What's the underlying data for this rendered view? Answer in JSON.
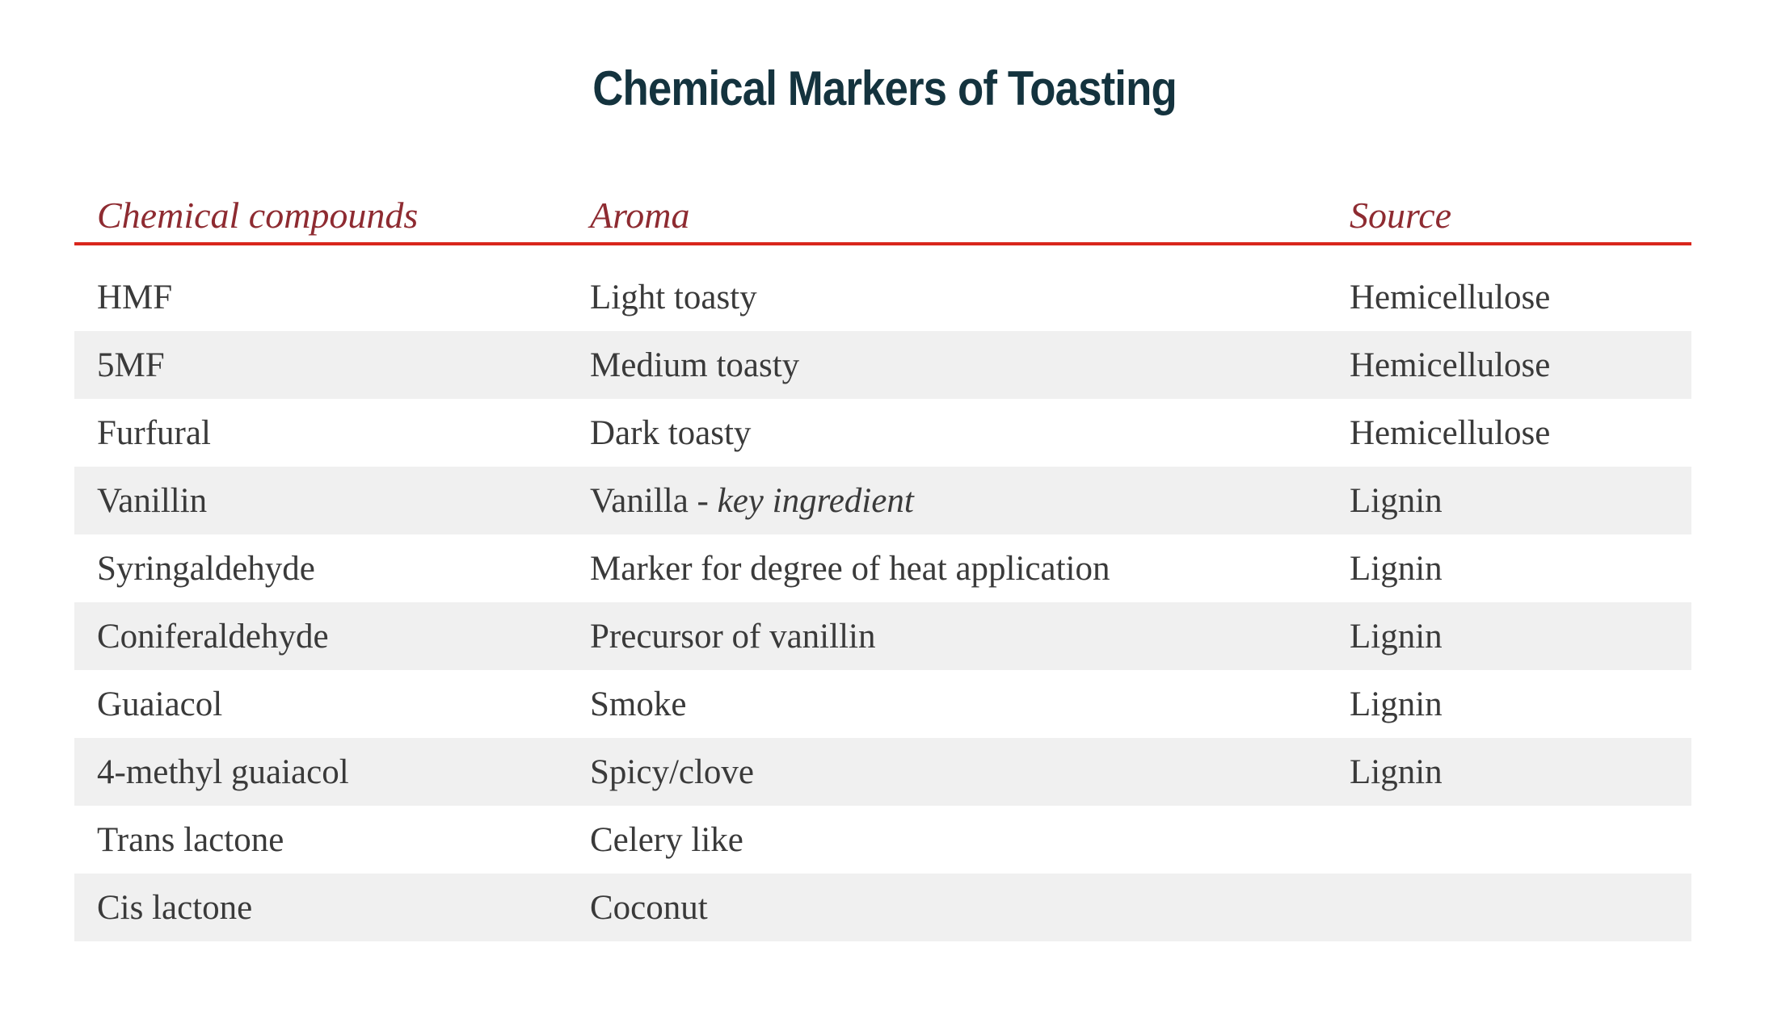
{
  "title": "Chemical Markers of Toasting",
  "table": {
    "columns": [
      "Chemical compounds",
      "Aroma",
      "Source"
    ],
    "rows": [
      {
        "compound": "HMF",
        "aroma": "Light toasty",
        "aroma_italic": "",
        "source": "Hemicellulose"
      },
      {
        "compound": "5MF",
        "aroma": "Medium toasty",
        "aroma_italic": "",
        "source": "Hemicellulose"
      },
      {
        "compound": "Furfural",
        "aroma": "Dark toasty",
        "aroma_italic": "",
        "source": "Hemicellulose"
      },
      {
        "compound": "Vanillin",
        "aroma": "Vanilla - ",
        "aroma_italic": "key ingredient",
        "source": "Lignin"
      },
      {
        "compound": "Syringaldehyde",
        "aroma": "Marker for degree of heat application",
        "aroma_italic": "",
        "source": "Lignin"
      },
      {
        "compound": "Coniferaldehyde",
        "aroma": "Precursor of vanillin",
        "aroma_italic": "",
        "source": "Lignin"
      },
      {
        "compound": "Guaiacol",
        "aroma": "Smoke",
        "aroma_italic": "",
        "source": "Lignin"
      },
      {
        "compound": "4-methyl guaiacol",
        "aroma": "Spicy/clove",
        "aroma_italic": "",
        "source": "Lignin"
      },
      {
        "compound": "Trans lactone",
        "aroma": "Celery like",
        "aroma_italic": "",
        "source": ""
      },
      {
        "compound": "Cis lactone",
        "aroma": "Coconut",
        "aroma_italic": "",
        "source": ""
      }
    ]
  },
  "colors": {
    "title": "#14333e",
    "header_text": "#8e2b31",
    "header_rule": "#d9261c",
    "body_text": "#3a3a3a",
    "row_stripe": "#f0f0f0",
    "background": "#ffffff"
  }
}
